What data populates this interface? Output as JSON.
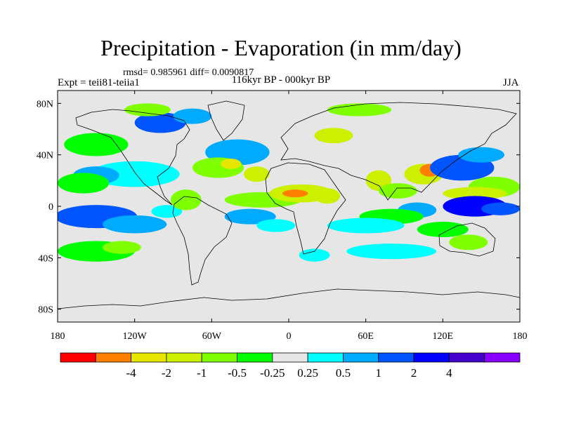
{
  "header": {
    "title": "Precipitation - Evaporation (in mm/day)",
    "stats": "rmsd= 0.985961 diff= 0.0090817",
    "experiment": "Expt = teii81-teiia1",
    "period": "116kyr BP - 000kyr BP",
    "season": "JJA"
  },
  "map": {
    "lon_range": [
      -180,
      180
    ],
    "lat_range": [
      -90,
      90
    ],
    "background_color": "#e6e6e6",
    "x_ticks": [
      {
        "lon": -180,
        "label": "180"
      },
      {
        "lon": -120,
        "label": "120W"
      },
      {
        "lon": -60,
        "label": "60W"
      },
      {
        "lon": 0,
        "label": "0"
      },
      {
        "lon": 60,
        "label": "60E"
      },
      {
        "lon": 120,
        "label": "120E"
      },
      {
        "lon": 180,
        "label": "180"
      }
    ],
    "y_ticks": [
      {
        "lat": 80,
        "label": "80N"
      },
      {
        "lat": 40,
        "label": "40N"
      },
      {
        "lat": 0,
        "label": "0"
      },
      {
        "lat": -40,
        "label": "40S"
      },
      {
        "lat": -80,
        "label": "80S"
      }
    ],
    "anomalies": [
      {
        "lon": -150,
        "lat": -8,
        "rlon": 32,
        "rlat": 9,
        "level": 3
      },
      {
        "lon": -120,
        "lat": -14,
        "rlon": 25,
        "rlat": 7,
        "level": 2
      },
      {
        "lon": -95,
        "lat": -4,
        "rlon": 12,
        "rlat": 5,
        "level": 1
      },
      {
        "lon": -120,
        "lat": 25,
        "rlon": 35,
        "rlat": 10,
        "level": 1
      },
      {
        "lon": -150,
        "lat": 24,
        "rlon": 18,
        "rlat": 7,
        "level": 2
      },
      {
        "lon": -160,
        "lat": 18,
        "rlon": 20,
        "rlat": 8,
        "level": -1
      },
      {
        "lon": -150,
        "lat": 48,
        "rlon": 25,
        "rlat": 9,
        "level": -1
      },
      {
        "lon": -150,
        "lat": -35,
        "rlon": 30,
        "rlat": 8,
        "level": -1
      },
      {
        "lon": -130,
        "lat": -32,
        "rlon": 15,
        "rlat": 5,
        "level": -2
      },
      {
        "lon": -40,
        "lat": 42,
        "rlon": 25,
        "rlat": 10,
        "level": 2
      },
      {
        "lon": -55,
        "lat": 30,
        "rlon": 20,
        "rlat": 8,
        "level": -2
      },
      {
        "lon": -45,
        "lat": 33,
        "rlon": 8,
        "rlat": 4,
        "level": -4
      },
      {
        "lon": -25,
        "lat": 25,
        "rlon": 10,
        "rlat": 6,
        "level": -3
      },
      {
        "lon": -20,
        "lat": 5,
        "rlon": 30,
        "rlat": 6,
        "level": -2
      },
      {
        "lon": -30,
        "lat": -8,
        "rlon": 20,
        "rlat": 6,
        "level": 2
      },
      {
        "lon": -10,
        "lat": -15,
        "rlon": 15,
        "rlat": 5,
        "level": 1
      },
      {
        "lon": 10,
        "lat": 10,
        "rlon": 25,
        "rlat": 7,
        "level": -3
      },
      {
        "lon": 5,
        "lat": 10,
        "rlon": 10,
        "rlat": 3,
        "level": -5
      },
      {
        "lon": 30,
        "lat": 8,
        "rlon": 10,
        "rlat": 6,
        "level": -3
      },
      {
        "lon": -80,
        "lat": 5,
        "rlon": 12,
        "rlat": 8,
        "level": -2
      },
      {
        "lon": -100,
        "lat": 65,
        "rlon": 20,
        "rlat": 8,
        "level": 3
      },
      {
        "lon": -75,
        "lat": 70,
        "rlon": 15,
        "rlat": 6,
        "level": 2
      },
      {
        "lon": -110,
        "lat": 75,
        "rlon": 18,
        "rlat": 5,
        "level": -2
      },
      {
        "lon": 55,
        "lat": 75,
        "rlon": 25,
        "rlat": 5,
        "level": -2
      },
      {
        "lon": 35,
        "lat": 55,
        "rlon": 15,
        "rlat": 6,
        "level": -3
      },
      {
        "lon": 70,
        "lat": 20,
        "rlon": 10,
        "rlat": 8,
        "level": -3
      },
      {
        "lon": 85,
        "lat": 12,
        "rlon": 15,
        "rlat": 6,
        "level": -2
      },
      {
        "lon": 105,
        "lat": 25,
        "rlon": 15,
        "rlat": 8,
        "level": -3
      },
      {
        "lon": 110,
        "lat": 28,
        "rlon": 8,
        "rlat": 5,
        "level": -5
      },
      {
        "lon": 135,
        "lat": 30,
        "rlon": 25,
        "rlat": 10,
        "level": 3
      },
      {
        "lon": 150,
        "lat": 40,
        "rlon": 18,
        "rlat": 6,
        "level": 2
      },
      {
        "lon": 160,
        "lat": 15,
        "rlon": 20,
        "rlat": 8,
        "level": -2
      },
      {
        "lon": 145,
        "lat": 10,
        "rlon": 25,
        "rlat": 5,
        "level": -3
      },
      {
        "lon": 145,
        "lat": 0,
        "rlon": 25,
        "rlat": 8,
        "level": 4
      },
      {
        "lon": 165,
        "lat": -2,
        "rlon": 15,
        "rlat": 5,
        "level": 3
      },
      {
        "lon": 100,
        "lat": -3,
        "rlon": 15,
        "rlat": 6,
        "level": 2
      },
      {
        "lon": 80,
        "lat": -8,
        "rlon": 25,
        "rlat": 6,
        "level": -1
      },
      {
        "lon": 60,
        "lat": -15,
        "rlon": 30,
        "rlat": 6,
        "level": 1
      },
      {
        "lon": 80,
        "lat": -35,
        "rlon": 35,
        "rlat": 6,
        "level": 1
      },
      {
        "lon": 20,
        "lat": -38,
        "rlon": 12,
        "rlat": 5,
        "level": 1
      },
      {
        "lon": 120,
        "lat": -18,
        "rlon": 20,
        "rlat": 6,
        "level": -1
      },
      {
        "lon": 140,
        "lat": -28,
        "rlon": 15,
        "rlat": 6,
        "level": -2
      }
    ]
  },
  "colorbar": {
    "colors": [
      "#ff0000",
      "#ff8000",
      "#e6e600",
      "#ccf000",
      "#80ff00",
      "#00ff00",
      "#e6e6e6",
      "#00ffff",
      "#00aaff",
      "#0055ff",
      "#0000ff",
      "#4400cc",
      "#8800ff"
    ],
    "labels": [
      "-4",
      "-2",
      "-1",
      "-0.5",
      "-0.25",
      "0.25",
      "0.5",
      "1",
      "2",
      "4"
    ]
  }
}
